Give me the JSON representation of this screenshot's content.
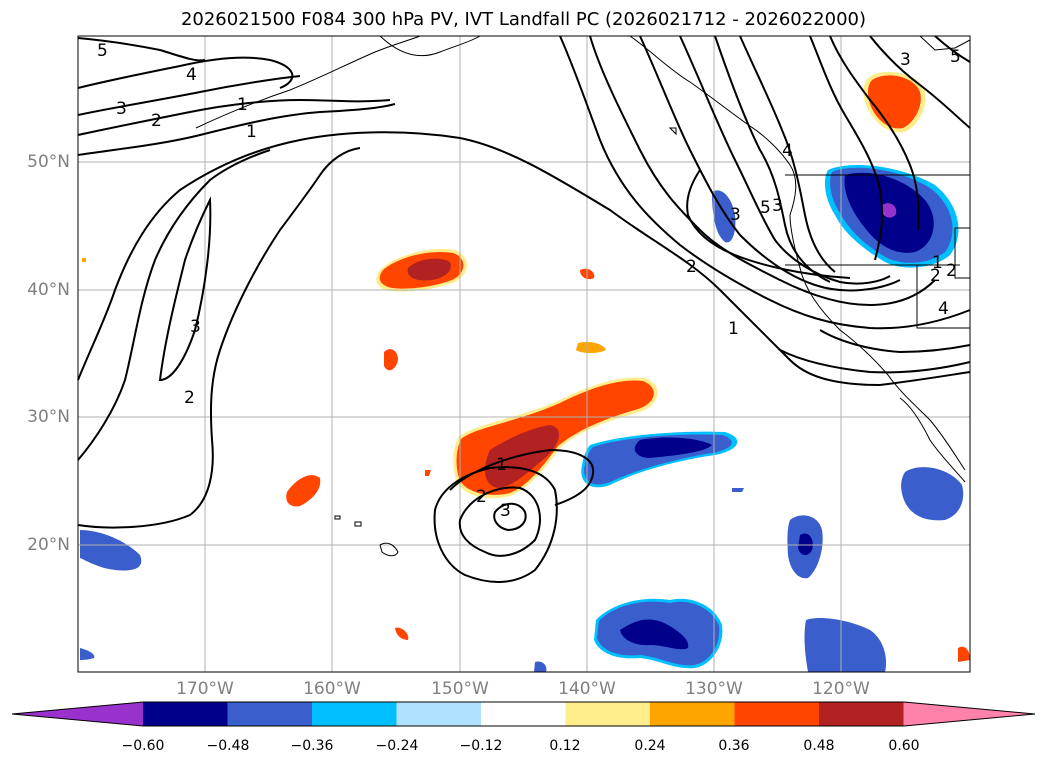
{
  "title": "2026021500 F084 300 hPa PV, IVT Landfall PC (2026021712 - 2026022000)",
  "lat_labels": [
    "50°N",
    "40°N",
    "30°N",
    "20°N"
  ],
  "lon_labels": [
    "170°W",
    "160°W",
    "150°W",
    "140°W",
    "130°W",
    "120°W"
  ],
  "contour_labels": [
    "5",
    "4",
    "3",
    "2",
    "1",
    "1",
    "3",
    "2",
    "1",
    "2",
    "3",
    "2",
    "1",
    "2",
    "3",
    "4",
    "5",
    "3",
    "5",
    "4",
    "3",
    "1",
    "2"
  ],
  "colorbar": {
    "tick_labels": [
      "−0.60",
      "−0.48",
      "−0.36",
      "−0.24",
      "−0.12",
      "0.12",
      "0.24",
      "0.36",
      "0.48",
      "0.60"
    ],
    "colors": [
      "#9932cc",
      "#00008b",
      "#3a5fcd",
      "#00bfff",
      "#b0e2ff",
      "#ffffff",
      "#ffec8b",
      "#ffa500",
      "#ff4500",
      "#b22222",
      "#ff82ab"
    ]
  },
  "colors": {
    "contour": "#000000",
    "grid": "#b0b0b0",
    "coast": "#000000"
  }
}
